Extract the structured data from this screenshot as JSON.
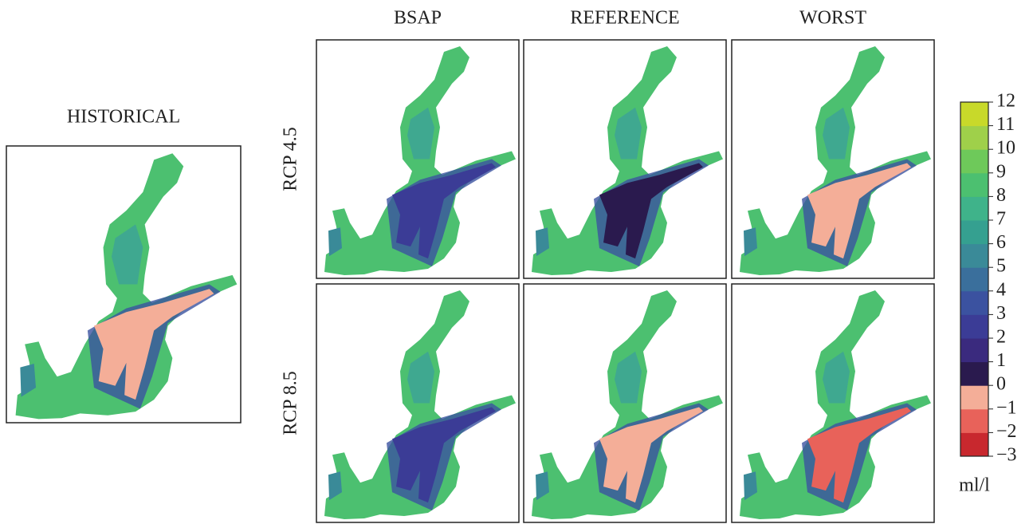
{
  "historical": {
    "title": "HISTORICAL"
  },
  "columns": [
    "BSAP",
    "REFERENCE",
    "WORST"
  ],
  "rows": [
    "RCP 4.5",
    "RCP 8.5"
  ],
  "colorbar": {
    "lim": [
      -3,
      12
    ],
    "ticks": [
      {
        "value": -3,
        "label": "−3"
      },
      {
        "value": -2,
        "label": "−2"
      },
      {
        "value": -1,
        "label": "−1"
      },
      0,
      1,
      2,
      3,
      4,
      5,
      6,
      7,
      8,
      9,
      10,
      11,
      12
    ],
    "colors": [
      "#c8282e",
      "#e8625a",
      "#f4ae98",
      "#2a1a4e",
      "#3a2a7e",
      "#3b3c96",
      "#3b52a0",
      "#3a6f9c",
      "#3a8a98",
      "#35a090",
      "#3fb38a",
      "#4cc070",
      "#6ec95a",
      "#9fd04a",
      "#c8d92a"
    ],
    "unit": "ml/l"
  }
}
